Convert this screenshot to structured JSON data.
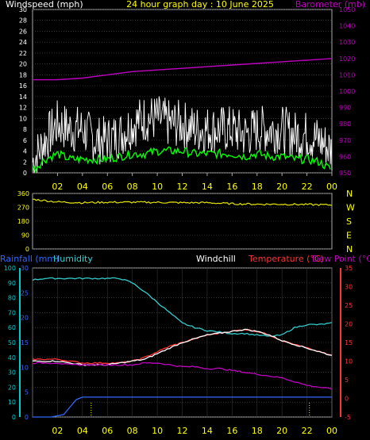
{
  "header": {
    "left": "Windspeed (mph)",
    "center": "24 hour graph day : 10 June 2025",
    "right": "Barometer (mb)"
  },
  "colors": {
    "gust": "#ffffff",
    "wind": "#00ff00",
    "baro": "#c000c0",
    "dir": "#e6e600",
    "humidity": "#33cccc",
    "temp": "#ff3333",
    "dewpoint": "#c000c0",
    "windchill": "#ffffff",
    "rain": "#3366ff",
    "left_axis": "#00cccc",
    "yellow": "#ffff00",
    "grid": "#555555"
  },
  "chart_data": [
    {
      "type": "line",
      "panel": "wind-barometer",
      "x_ticks": [
        "02",
        "04",
        "06",
        "08",
        "10",
        "12",
        "14",
        "16",
        "18",
        "20",
        "22",
        "00"
      ],
      "xlim": [
        0,
        24
      ],
      "left_axis": {
        "label": "Windspeed (mph)",
        "ylim": [
          0,
          30
        ],
        "ticks": [
          0,
          2,
          4,
          6,
          8,
          10,
          12,
          14,
          16,
          18,
          20,
          22,
          24,
          26,
          28,
          30
        ]
      },
      "right_axis": {
        "label": "Barometer (mb)",
        "ylim": [
          950,
          1050
        ],
        "ticks": [
          950,
          960,
          970,
          980,
          990,
          1000,
          1010,
          1020,
          1030,
          1040,
          1050
        ]
      },
      "series": [
        {
          "key": "gust",
          "axis": "left",
          "x": [
            0,
            1,
            2,
            3,
            4,
            5,
            6,
            7,
            8,
            9,
            10,
            11,
            12,
            13,
            14,
            15,
            16,
            17,
            18,
            19,
            20,
            21,
            22,
            23,
            24
          ],
          "y": [
            2,
            6,
            9,
            8,
            8,
            6,
            6,
            7,
            9,
            10,
            10,
            9,
            9,
            8,
            8,
            8,
            8,
            7,
            8,
            8,
            8,
            7,
            7,
            6,
            4
          ]
        },
        {
          "key": "wind",
          "axis": "left",
          "x": [
            0,
            1,
            2,
            3,
            4,
            5,
            6,
            7,
            8,
            9,
            10,
            11,
            12,
            13,
            14,
            15,
            16,
            17,
            18,
            19,
            20,
            21,
            22,
            23,
            24
          ],
          "y": [
            0.5,
            2.5,
            3.5,
            2.5,
            2.5,
            2.5,
            2.5,
            3,
            3.5,
            3.5,
            4,
            4,
            4,
            3.5,
            3.5,
            3.5,
            3.5,
            3,
            3.5,
            3,
            3,
            2.5,
            2.5,
            2,
            0.5
          ]
        },
        {
          "key": "baro",
          "axis": "right",
          "x": [
            0,
            2,
            4,
            6,
            8,
            10,
            12,
            14,
            16,
            18,
            20,
            22,
            24
          ],
          "y": [
            1007,
            1007,
            1008,
            1010,
            1012,
            1013,
            1014,
            1015,
            1016,
            1017,
            1018,
            1019,
            1020
          ]
        }
      ]
    },
    {
      "type": "line",
      "panel": "wind-direction",
      "xlim": [
        0,
        24
      ],
      "ylim": [
        0,
        360
      ],
      "y_ticks": [
        0,
        90,
        180,
        270,
        360
      ],
      "compass": [
        "N",
        "W",
        "S",
        "E",
        "N"
      ],
      "series": [
        {
          "key": "dir",
          "x": [
            0,
            2,
            4,
            6,
            8,
            10,
            12,
            14,
            16,
            18,
            20,
            22,
            24
          ],
          "y": [
            322,
            305,
            300,
            303,
            303,
            302,
            300,
            300,
            293,
            290,
            290,
            288,
            285
          ]
        }
      ]
    },
    {
      "type": "line",
      "panel": "temp-humidity-rain",
      "xlim": [
        0,
        24
      ],
      "labels": {
        "rain": "Rainfall (mm)",
        "humidity": "Humidity",
        "windchill": "Windchill",
        "temp": "Temperature (°C)",
        "dew": "Dew Point (°C)"
      },
      "humidity_axis": {
        "ylim": [
          0,
          100
        ],
        "ticks": [
          0,
          10,
          20,
          30,
          40,
          50,
          60,
          70,
          80,
          90,
          100
        ]
      },
      "rain_axis": {
        "ylim": [
          0,
          30
        ],
        "ticks": [
          0,
          5,
          10,
          15,
          20,
          25,
          30
        ]
      },
      "temp_axis": {
        "ylim": [
          -5,
          35
        ],
        "ticks": [
          -5,
          0,
          5,
          10,
          15,
          20,
          25,
          30,
          35
        ]
      },
      "series": [
        {
          "key": "humidity",
          "axis": "humidity",
          "x": [
            0,
            1,
            2,
            3,
            4,
            5,
            6,
            7,
            8,
            9,
            10,
            11,
            12,
            13,
            14,
            15,
            16,
            17,
            18,
            19,
            20,
            21,
            22,
            23,
            24
          ],
          "y": [
            92,
            93,
            93,
            93,
            93,
            93,
            93,
            93,
            90,
            84,
            77,
            70,
            63,
            60,
            58,
            57,
            56,
            56,
            55,
            54,
            55,
            60,
            62,
            62,
            63
          ]
        },
        {
          "key": "temp",
          "axis": "temp",
          "x": [
            0,
            1,
            2,
            3,
            4,
            5,
            6,
            7,
            8,
            9,
            10,
            11,
            12,
            13,
            14,
            15,
            16,
            17,
            18,
            19,
            20,
            21,
            22,
            23,
            24
          ],
          "y": [
            10.5,
            10.5,
            10.5,
            10,
            9.5,
            9.5,
            9.5,
            9.5,
            10,
            11,
            12.5,
            14,
            15,
            16,
            17,
            17.5,
            18,
            18.5,
            18,
            17,
            15.5,
            14.5,
            13.5,
            12.5,
            11.5
          ]
        },
        {
          "key": "windchill",
          "axis": "temp",
          "x": [
            0,
            1,
            2,
            3,
            4,
            5,
            6,
            7,
            8,
            9,
            10,
            11,
            12,
            13,
            14,
            15,
            16,
            17,
            18,
            19,
            20,
            21,
            22,
            23,
            24
          ],
          "y": [
            10,
            10,
            10,
            9.5,
            9,
            9,
            9,
            9.5,
            10,
            10.5,
            12,
            13.5,
            15,
            16,
            17,
            17.5,
            18,
            18.5,
            18,
            17,
            15.5,
            14.5,
            13.5,
            12.5,
            11.5
          ]
        },
        {
          "key": "dewpoint",
          "axis": "temp",
          "x": [
            0,
            1,
            2,
            3,
            4,
            5,
            6,
            7,
            8,
            9,
            10,
            11,
            12,
            13,
            14,
            15,
            16,
            17,
            18,
            19,
            20,
            21,
            22,
            23,
            24
          ],
          "y": [
            9.5,
            9.5,
            9.5,
            9,
            9,
            9,
            9,
            9,
            9,
            9.5,
            9.5,
            9,
            8.5,
            8.5,
            8,
            8,
            7.5,
            7,
            6.5,
            6,
            5.5,
            4.5,
            3.5,
            3,
            2.5
          ]
        },
        {
          "key": "rain",
          "axis": "rain",
          "x": [
            0,
            1.5,
            2.5,
            3,
            3.5,
            4,
            5,
            24
          ],
          "y": [
            0,
            0,
            0.5,
            2,
            3.5,
            4,
            4,
            4
          ]
        }
      ]
    }
  ]
}
